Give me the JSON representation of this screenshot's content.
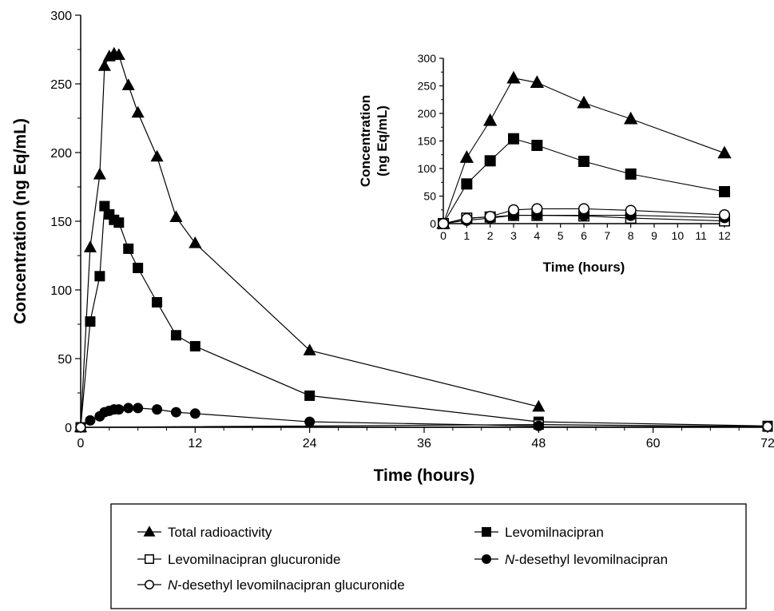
{
  "chart_data": [
    {
      "type": "line",
      "name": "main",
      "xlabel": "Time (hours)",
      "ylabel": "Concentration (ng Eq/mL)",
      "xlim": [
        0,
        72
      ],
      "ylim": [
        0,
        300
      ],
      "xticks": [
        0,
        12,
        24,
        36,
        48,
        60,
        72
      ],
      "yticks": [
        0,
        50,
        100,
        150,
        200,
        250,
        300
      ],
      "grid": false,
      "series": [
        {
          "key": "total",
          "marker": "filled-triangle",
          "points": [
            [
              0,
              0
            ],
            [
              1,
              131
            ],
            [
              2,
              184
            ],
            [
              2.5,
              263
            ],
            [
              3,
              270
            ],
            [
              3.5,
              272
            ],
            [
              4,
              271
            ],
            [
              5,
              249
            ],
            [
              6,
              229
            ],
            [
              8,
              197
            ],
            [
              10,
              153
            ],
            [
              12,
              134
            ],
            [
              24,
              56
            ],
            [
              48,
              15
            ]
          ]
        },
        {
          "key": "levo",
          "marker": "filled-square",
          "points": [
            [
              0,
              0
            ],
            [
              1,
              77
            ],
            [
              2,
              110
            ],
            [
              2.5,
              161
            ],
            [
              3,
              155
            ],
            [
              3.5,
              151
            ],
            [
              4,
              149
            ],
            [
              5,
              130
            ],
            [
              6,
              116
            ],
            [
              8,
              91
            ],
            [
              10,
              67
            ],
            [
              12,
              59
            ],
            [
              24,
              23
            ],
            [
              48,
              4
            ],
            [
              72,
              1
            ]
          ]
        },
        {
          "key": "glucuronide",
          "marker": "open-square",
          "points": [
            [
              0,
              0
            ],
            [
              48,
              2
            ],
            [
              72,
              0.5
            ]
          ]
        },
        {
          "key": "desethyl",
          "marker": "filled-circle",
          "points": [
            [
              0,
              0
            ],
            [
              1,
              5
            ],
            [
              2,
              8
            ],
            [
              2.5,
              11
            ],
            [
              3,
              12
            ],
            [
              3.5,
              13
            ],
            [
              4,
              13
            ],
            [
              5,
              14
            ],
            [
              6,
              14
            ],
            [
              8,
              13
            ],
            [
              10,
              11
            ],
            [
              12,
              10
            ],
            [
              24,
              4
            ],
            [
              48,
              1
            ]
          ]
        },
        {
          "key": "desethyl_gluc",
          "marker": "open-circle",
          "points": [
            [
              0,
              0
            ],
            [
              72,
              0.5
            ]
          ]
        }
      ]
    },
    {
      "type": "line",
      "name": "inset",
      "xlabel": "Time (hours)",
      "ylabel_line1": "Concentration",
      "ylabel_line2": "(ng Eq/mL)",
      "xlim": [
        0,
        12
      ],
      "ylim": [
        0,
        300
      ],
      "xticks": [
        0,
        1,
        2,
        3,
        4,
        5,
        6,
        7,
        8,
        9,
        10,
        11,
        12
      ],
      "yticks": [
        0,
        50,
        100,
        150,
        200,
        250,
        300
      ],
      "grid": false,
      "series": [
        {
          "key": "total",
          "marker": "filled-triangle",
          "points": [
            [
              0,
              0
            ],
            [
              1,
              120
            ],
            [
              2,
              187
            ],
            [
              3,
              264
            ],
            [
              4,
              256
            ],
            [
              6,
              219
            ],
            [
              8,
              190
            ],
            [
              12,
              128
            ]
          ]
        },
        {
          "key": "levo",
          "marker": "filled-square",
          "points": [
            [
              0,
              0
            ],
            [
              1,
              72
            ],
            [
              2,
              114
            ],
            [
              3,
              154
            ],
            [
              4,
              142
            ],
            [
              6,
              113
            ],
            [
              8,
              90
            ],
            [
              12,
              58
            ]
          ]
        },
        {
          "key": "glucuronide",
          "marker": "open-square",
          "points": [
            [
              0,
              0
            ],
            [
              1,
              10
            ],
            [
              2,
              12
            ],
            [
              3,
              15
            ],
            [
              4,
              15
            ],
            [
              6,
              14
            ],
            [
              8,
              10
            ],
            [
              12,
              5
            ]
          ]
        },
        {
          "key": "desethyl",
          "marker": "filled-circle",
          "points": [
            [
              0,
              0
            ],
            [
              1,
              6
            ],
            [
              2,
              10
            ],
            [
              3,
              15
            ],
            [
              4,
              15
            ],
            [
              6,
              15
            ],
            [
              8,
              15
            ],
            [
              12,
              11
            ]
          ]
        },
        {
          "key": "desethyl_gluc",
          "marker": "open-circle",
          "points": [
            [
              0,
              0
            ],
            [
              1,
              9
            ],
            [
              2,
              13
            ],
            [
              3,
              25
            ],
            [
              4,
              27
            ],
            [
              6,
              27
            ],
            [
              8,
              24
            ],
            [
              12,
              16
            ]
          ]
        }
      ]
    }
  ],
  "legend": {
    "items": [
      {
        "key": "total",
        "marker": "filled-triangle",
        "label": "Total radioactivity",
        "italic_prefix": ""
      },
      {
        "key": "levo",
        "marker": "filled-square",
        "label": "Levomilnacipran",
        "italic_prefix": ""
      },
      {
        "key": "glucuronide",
        "marker": "open-square",
        "label": "Levomilnacipran glucuronide",
        "italic_prefix": ""
      },
      {
        "key": "desethyl",
        "marker": "filled-circle",
        "label": "-desethyl levomilnacipran",
        "italic_prefix": "N"
      },
      {
        "key": "desethyl_gluc",
        "marker": "open-circle",
        "label": "-desethyl levomilnacipran glucuronide",
        "italic_prefix": "N"
      }
    ]
  }
}
